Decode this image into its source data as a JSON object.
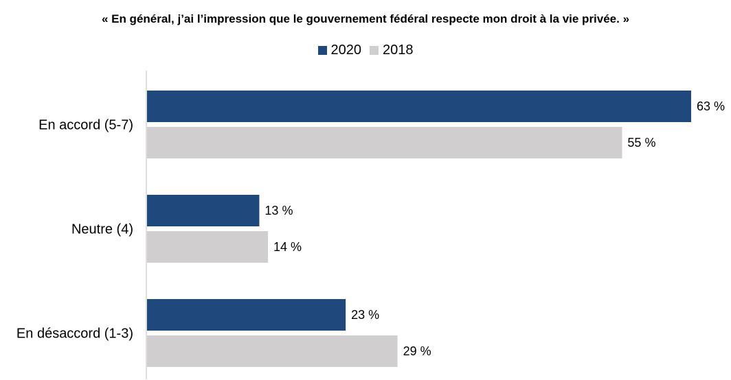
{
  "chart_data": {
    "type": "bar",
    "orientation": "horizontal",
    "title": "« En général, j’ai l’impression que le gouvernement fédéral respecte mon droit à la vie privée. »",
    "categories": [
      "En accord (5-7)",
      "Neutre (4)",
      "En désaccord (1-3)"
    ],
    "series": [
      {
        "name": "2020",
        "values": [
          63,
          13,
          23
        ],
        "color": "#1f497d"
      },
      {
        "name": "2018",
        "values": [
          55,
          14,
          29
        ],
        "color": "#d0cece"
      }
    ],
    "value_suffix": " %",
    "xlim": [
      0,
      63
    ],
    "grid": false,
    "legend_position": "top-center"
  }
}
